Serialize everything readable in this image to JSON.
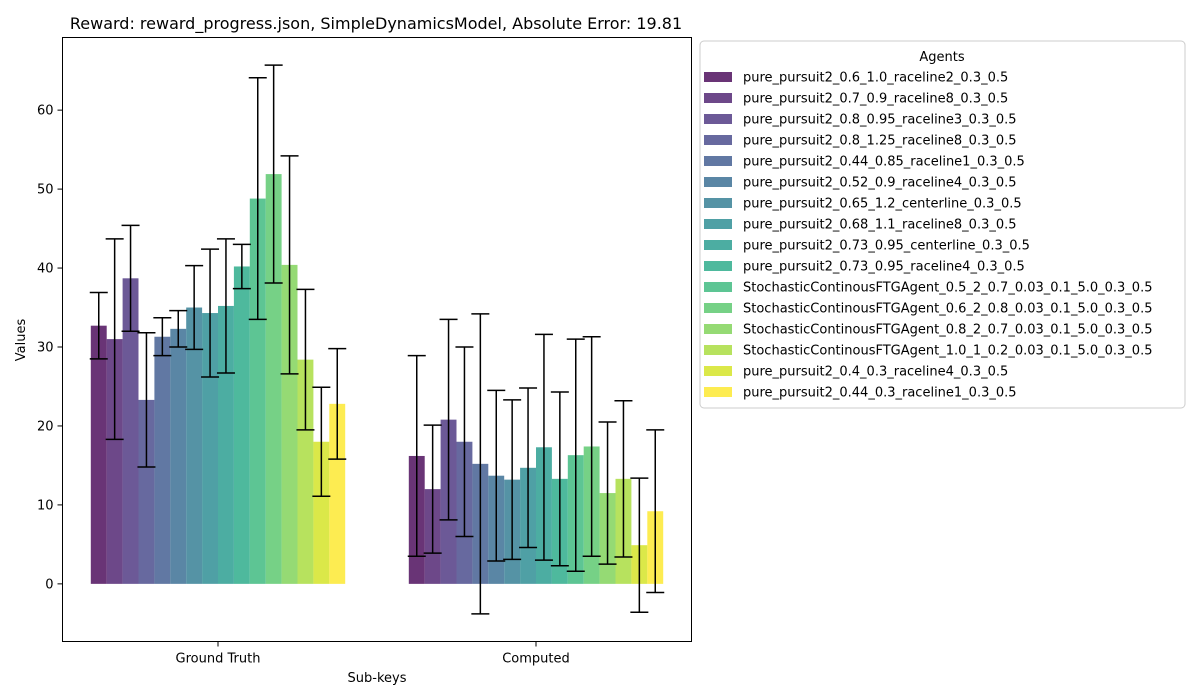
{
  "chart_data": {
    "type": "bar",
    "title": "Reward: reward_progress.json, SimpleDynamicsModel, Absolute Error: 19.81",
    "xlabel": "Sub-keys",
    "ylabel": "Values",
    "categories": [
      "Ground Truth",
      "Computed"
    ],
    "ylim": [
      -7.3,
      69.2
    ],
    "yticks": [
      0,
      10,
      20,
      30,
      40,
      50,
      60
    ],
    "grid": false,
    "legend_title": "Agents",
    "legend_position": "outside-right",
    "colormap": "viridis",
    "series": [
      {
        "name": "pure_pursuit2_0.6_1.0_raceline2_0.3_0.5",
        "color": "#440154",
        "values": [
          32.7,
          16.2
        ],
        "errors": [
          4.2,
          12.7
        ]
      },
      {
        "name": "pure_pursuit2_0.7_0.9_raceline8_0.3_0.5",
        "color": "#481a6c",
        "values": [
          31.0,
          12.0
        ],
        "errors": [
          12.7,
          8.1
        ]
      },
      {
        "name": "pure_pursuit2_0.8_0.95_raceline3_0.3_0.5",
        "color": "#472f7d",
        "values": [
          38.7,
          20.8
        ],
        "errors": [
          6.7,
          12.7
        ]
      },
      {
        "name": "pure_pursuit2_0.8_1.25_raceline8_0.3_0.5",
        "color": "#414487",
        "values": [
          23.3,
          18.0
        ],
        "errors": [
          8.5,
          12.0
        ]
      },
      {
        "name": "pure_pursuit2_0.44_0.85_raceline1_0.3_0.5",
        "color": "#39568c",
        "values": [
          31.3,
          15.2
        ],
        "errors": [
          2.4,
          19.0
        ]
      },
      {
        "name": "pure_pursuit2_0.52_0.9_raceline4_0.3_0.5",
        "color": "#31688e",
        "values": [
          32.3,
          13.7
        ],
        "errors": [
          2.3,
          10.8
        ]
      },
      {
        "name": "pure_pursuit2_0.65_1.2_centerline_0.3_0.5",
        "color": "#2a788e",
        "values": [
          35.0,
          13.2
        ],
        "errors": [
          5.3,
          10.1
        ]
      },
      {
        "name": "pure_pursuit2_0.68_1.1_raceline8_0.3_0.5",
        "color": "#23888e",
        "values": [
          34.3,
          14.7
        ],
        "errors": [
          8.1,
          10.1
        ]
      },
      {
        "name": "pure_pursuit2_0.73_0.95_centerline_0.3_0.5",
        "color": "#1f988b",
        "values": [
          35.2,
          17.3
        ],
        "errors": [
          8.5,
          14.3
        ]
      },
      {
        "name": "pure_pursuit2_0.73_0.95_raceline4_0.3_0.5",
        "color": "#22a884",
        "values": [
          40.2,
          13.3
        ],
        "errors": [
          2.8,
          11.0
        ]
      },
      {
        "name": "StochasticContinousFTGAgent_0.5_2_0.7_0.03_0.1_5.0_0.3_0.5",
        "color": "#35b779",
        "values": [
          48.8,
          16.3
        ],
        "errors": [
          15.3,
          14.7
        ]
      },
      {
        "name": "StochasticContinousFTGAgent_0.6_2_0.8_0.03_0.1_5.0_0.3_0.5",
        "color": "#54c568",
        "values": [
          51.9,
          17.4
        ],
        "errors": [
          13.8,
          13.9
        ]
      },
      {
        "name": "StochasticContinousFTGAgent_0.8_2_0.7_0.03_0.1_5.0_0.3_0.5",
        "color": "#7ad151",
        "values": [
          40.4,
          11.5
        ],
        "errors": [
          13.8,
          9.0
        ]
      },
      {
        "name": "StochasticContinousFTGAgent_1.0_1_0.2_0.03_0.1_5.0_0.3_0.5",
        "color": "#a5db36",
        "values": [
          28.4,
          13.3
        ],
        "errors": [
          8.9,
          9.9
        ]
      },
      {
        "name": "pure_pursuit2_0.4_0.3_raceline4_0.3_0.5",
        "color": "#d2e21b",
        "values": [
          18.0,
          4.9
        ],
        "errors": [
          6.9,
          8.5
        ]
      },
      {
        "name": "pure_pursuit2_0.44_0.3_raceline1_0.3_0.5",
        "color": "#fde725",
        "values": [
          22.8,
          9.2
        ],
        "errors": [
          7.0,
          10.3
        ]
      }
    ]
  }
}
